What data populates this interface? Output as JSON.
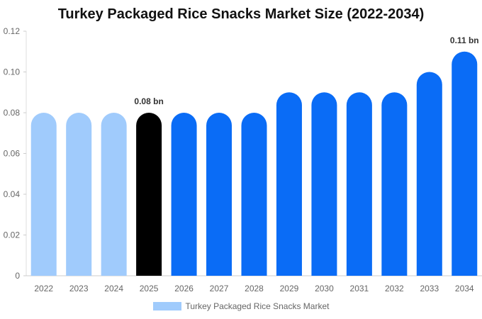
{
  "chart_data": {
    "type": "bar",
    "title": "Turkey Packaged Rice Snacks Market Size (2022-2034)",
    "xlabel": "",
    "ylabel": "",
    "categories": [
      "2022",
      "2023",
      "2024",
      "2025",
      "2026",
      "2027",
      "2028",
      "2029",
      "2030",
      "2031",
      "2032",
      "2033",
      "2034"
    ],
    "series": [
      {
        "name": "Turkey Packaged Rice Snacks Market",
        "values": [
          0.08,
          0.08,
          0.08,
          0.08,
          0.08,
          0.08,
          0.08,
          0.09,
          0.09,
          0.09,
          0.09,
          0.1,
          0.11
        ]
      }
    ],
    "ylim": [
      0,
      0.12
    ],
    "yticks": [
      "0",
      "0.02",
      "0.04",
      "0.06",
      "0.08",
      "0.10",
      "0.12"
    ],
    "data_labels": [
      {
        "category": "2025",
        "text": "0.08 bn"
      },
      {
        "category": "2034",
        "text": "0.11 bn"
      }
    ],
    "colors": {
      "historical": "#a0cbfc",
      "current": "#000000",
      "forecast": "#0a6cf6"
    },
    "bar_color_groups": [
      "historical",
      "historical",
      "historical",
      "current",
      "forecast",
      "forecast",
      "forecast",
      "forecast",
      "forecast",
      "forecast",
      "forecast",
      "forecast",
      "forecast"
    ],
    "legend_position": "bottom",
    "grid": false
  }
}
